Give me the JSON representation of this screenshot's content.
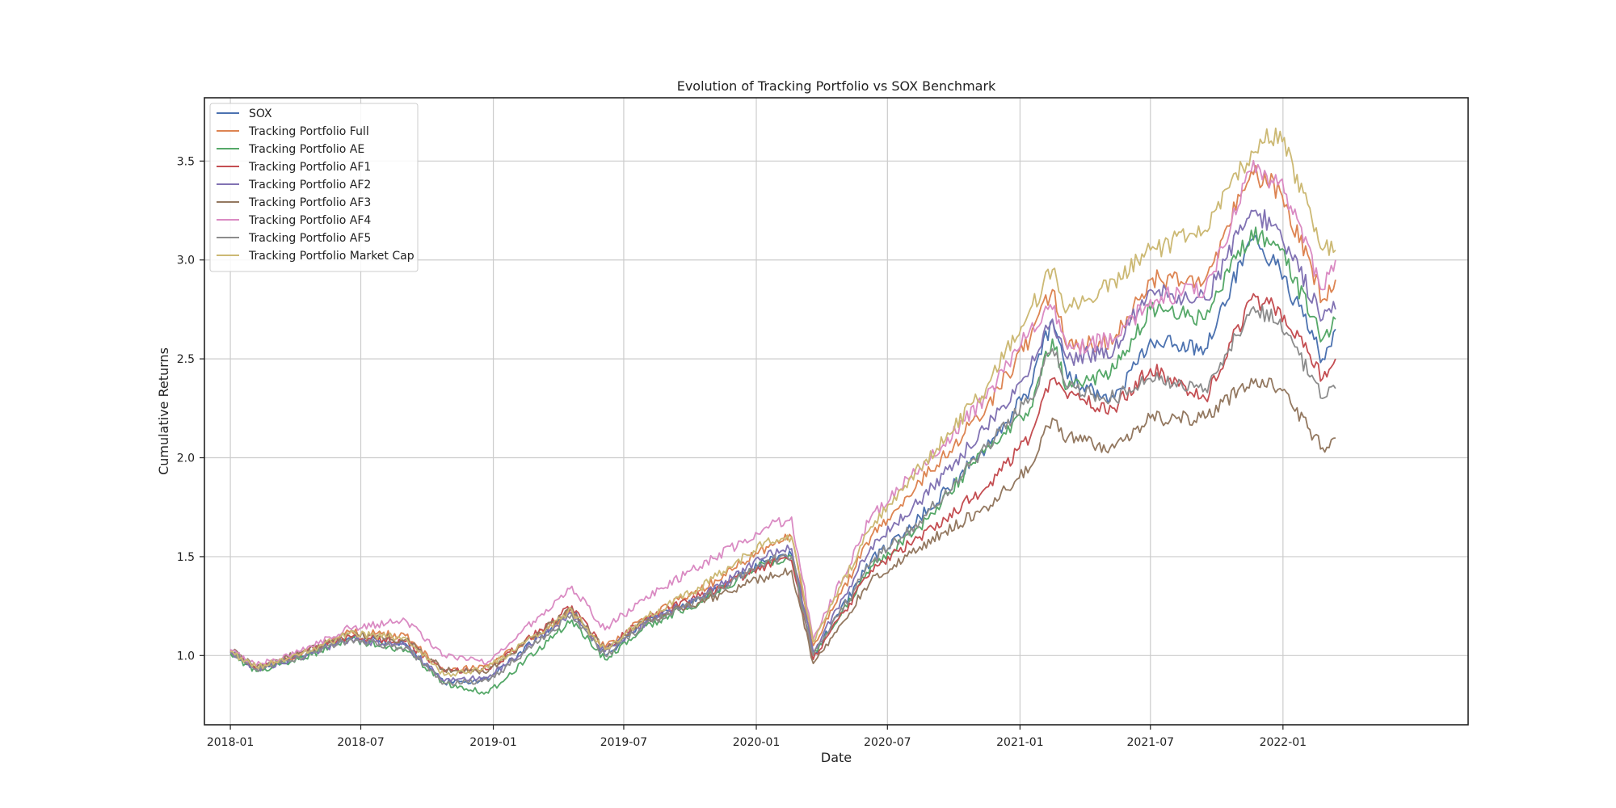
{
  "chart_data": {
    "type": "line",
    "title": "Evolution of Tracking Portfolio vs SOX Benchmark",
    "xlabel": "Date",
    "ylabel": "Cumulative Returns",
    "x_range": [
      "2017-11-26",
      "2022-09-15"
    ],
    "ylim": [
      0.65,
      3.82
    ],
    "x_ticks": [
      "2018-01",
      "2018-07",
      "2019-01",
      "2019-07",
      "2020-01",
      "2020-07",
      "2021-01",
      "2021-07",
      "2022-01"
    ],
    "y_ticks": [
      1.0,
      1.5,
      2.0,
      2.5,
      3.0,
      3.5
    ],
    "y_tick_labels": [
      "1.0",
      "1.5",
      "2.0",
      "2.5",
      "3.0",
      "3.5"
    ],
    "grid": true,
    "legend_position": "upper-left",
    "x": [
      "2018-01-01",
      "2018-02-06",
      "2018-04-06",
      "2018-06-15",
      "2018-09-01",
      "2018-10-25",
      "2018-12-25",
      "2019-04-20",
      "2019-06-05",
      "2019-08-01",
      "2019-10-15",
      "2020-01-15",
      "2020-02-19",
      "2020-03-20",
      "2020-06-08",
      "2020-08-15",
      "2020-11-15",
      "2021-01-15",
      "2021-02-15",
      "2021-03-08",
      "2021-05-12",
      "2021-07-01",
      "2021-09-15",
      "2021-11-18",
      "2021-12-28",
      "2022-02-25",
      "2022-03-15"
    ],
    "series": [
      {
        "name": "SOX",
        "color": "#4c72b0",
        "values": [
          1.02,
          0.93,
          0.99,
          1.09,
          1.06,
          0.86,
          0.88,
          1.23,
          1.0,
          1.17,
          1.29,
          1.48,
          1.51,
          1.0,
          1.48,
          1.7,
          2.05,
          2.35,
          2.7,
          2.4,
          2.3,
          2.6,
          2.55,
          3.1,
          2.95,
          2.5,
          2.65
        ]
      },
      {
        "name": "Tracking Portfolio Full",
        "color": "#dd8452",
        "values": [
          1.02,
          0.94,
          1.0,
          1.12,
          1.1,
          0.92,
          0.95,
          1.22,
          1.04,
          1.2,
          1.33,
          1.55,
          1.6,
          1.05,
          1.6,
          1.88,
          2.25,
          2.6,
          2.85,
          2.55,
          2.6,
          2.9,
          2.9,
          3.45,
          3.35,
          2.8,
          2.9
        ]
      },
      {
        "name": "Tracking Portfolio AE",
        "color": "#55a868",
        "values": [
          1.01,
          0.92,
          0.98,
          1.08,
          1.03,
          0.86,
          0.81,
          1.18,
          0.98,
          1.15,
          1.27,
          1.47,
          1.5,
          1.0,
          1.45,
          1.65,
          2.05,
          2.25,
          2.6,
          2.35,
          2.45,
          2.75,
          2.7,
          3.15,
          3.05,
          2.6,
          2.7
        ]
      },
      {
        "name": "Tracking Portfolio AF1",
        "color": "#c44e52",
        "values": [
          1.03,
          0.93,
          1.01,
          1.1,
          1.07,
          0.92,
          0.93,
          1.25,
          1.03,
          1.19,
          1.3,
          1.46,
          1.48,
          0.98,
          1.43,
          1.6,
          1.85,
          2.1,
          2.4,
          2.3,
          2.25,
          2.45,
          2.3,
          2.8,
          2.75,
          2.4,
          2.5
        ]
      },
      {
        "name": "Tracking Portfolio AF2",
        "color": "#8172b3",
        "values": [
          1.02,
          0.93,
          0.99,
          1.08,
          1.05,
          0.87,
          0.89,
          1.21,
          1.02,
          1.17,
          1.29,
          1.5,
          1.54,
          1.02,
          1.55,
          1.78,
          2.15,
          2.45,
          2.7,
          2.5,
          2.55,
          2.85,
          2.8,
          3.25,
          3.15,
          2.7,
          2.75
        ]
      },
      {
        "name": "Tracking Portfolio AF3",
        "color": "#937860",
        "values": [
          1.03,
          0.94,
          1.01,
          1.11,
          1.08,
          0.93,
          0.92,
          1.24,
          1.03,
          1.18,
          1.27,
          1.4,
          1.43,
          0.96,
          1.38,
          1.55,
          1.75,
          1.95,
          2.2,
          2.1,
          2.05,
          2.2,
          2.2,
          2.4,
          2.35,
          2.05,
          2.1
        ]
      },
      {
        "name": "Tracking Portfolio AF4",
        "color": "#da8bc3",
        "values": [
          1.03,
          0.95,
          1.02,
          1.14,
          1.18,
          1.0,
          0.97,
          1.35,
          1.13,
          1.3,
          1.45,
          1.65,
          1.7,
          1.08,
          1.7,
          1.95,
          2.3,
          2.65,
          2.75,
          2.55,
          2.6,
          2.8,
          2.85,
          3.45,
          3.4,
          2.85,
          3.0
        ]
      },
      {
        "name": "Tracking Portfolio AF5",
        "color": "#8c8c8c",
        "values": [
          1.02,
          0.93,
          0.99,
          1.08,
          1.04,
          0.86,
          0.87,
          1.21,
          1.0,
          1.16,
          1.28,
          1.48,
          1.5,
          1.0,
          1.47,
          1.68,
          2.05,
          2.3,
          2.55,
          2.35,
          2.3,
          2.4,
          2.35,
          2.75,
          2.7,
          2.3,
          2.35
        ]
      },
      {
        "name": "Tracking Portfolio Market Cap",
        "color": "#ccb974",
        "values": [
          1.02,
          0.94,
          1.0,
          1.11,
          1.09,
          0.9,
          0.94,
          1.23,
          1.03,
          1.2,
          1.34,
          1.58,
          1.6,
          1.07,
          1.65,
          1.95,
          2.35,
          2.75,
          2.95,
          2.75,
          2.9,
          3.05,
          3.15,
          3.55,
          3.65,
          3.05,
          3.05
        ]
      }
    ]
  }
}
